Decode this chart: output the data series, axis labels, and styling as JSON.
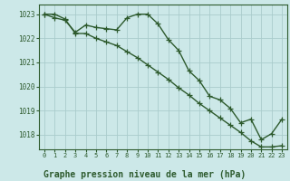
{
  "bg_color": "#cce8e8",
  "grid_color": "#aacccc",
  "line_color": "#2d5a2d",
  "marker": "+",
  "markersize": 4,
  "linewidth": 1.0,
  "title": "Graphe pression niveau de la mer (hPa)",
  "title_fontsize": 7,
  "xlim": [
    -0.5,
    23.5
  ],
  "ylim": [
    1017.4,
    1023.4
  ],
  "yticks": [
    1018,
    1019,
    1020,
    1021,
    1022,
    1023
  ],
  "xticks": [
    0,
    1,
    2,
    3,
    4,
    5,
    6,
    7,
    8,
    9,
    10,
    11,
    12,
    13,
    14,
    15,
    16,
    17,
    18,
    19,
    20,
    21,
    22,
    23
  ],
  "line1_x": [
    0,
    1,
    2,
    3,
    4,
    5,
    6,
    7,
    8,
    9,
    10,
    11,
    12,
    13,
    14,
    15,
    16,
    17,
    18,
    19,
    20,
    21,
    22,
    23
  ],
  "line1_y": [
    1023.0,
    1022.85,
    1022.75,
    1022.25,
    1022.55,
    1022.45,
    1022.4,
    1022.35,
    1022.85,
    1023.0,
    1023.0,
    1022.6,
    1021.95,
    1021.5,
    1020.65,
    1020.25,
    1019.6,
    1019.45,
    1019.1,
    1018.5,
    1018.65,
    1017.8,
    1018.05,
    1018.65
  ],
  "line2_x": [
    0,
    1,
    2,
    3,
    4,
    5,
    6,
    7,
    8,
    9,
    10,
    11,
    12,
    13,
    14,
    15,
    16,
    17,
    18,
    19,
    20,
    21,
    22,
    23
  ],
  "line2_y": [
    1023.0,
    1023.0,
    1022.8,
    1022.2,
    1022.2,
    1022.0,
    1021.85,
    1021.7,
    1021.45,
    1021.2,
    1020.9,
    1020.6,
    1020.3,
    1019.95,
    1019.65,
    1019.3,
    1019.0,
    1018.7,
    1018.4,
    1018.1,
    1017.75,
    1017.5,
    1017.5,
    1017.55
  ]
}
